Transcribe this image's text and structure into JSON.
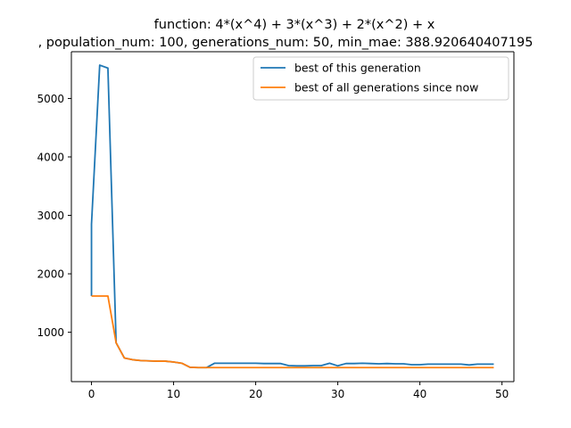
{
  "chart_data": {
    "type": "line",
    "title_line1": "function:  4*(x^4) + 3*(x^3) + 2*(x^2) + x",
    "title_line2": ", population_num: 100, generations_num: 50, min_mae: 388.920640407195",
    "xlabel": "",
    "ylabel": "",
    "xlim": [
      -2.45,
      51.45
    ],
    "ylim": [
      155,
      5800
    ],
    "xticks": [
      0,
      10,
      20,
      30,
      40,
      50
    ],
    "yticks": [
      1000,
      2000,
      3000,
      4000,
      5000
    ],
    "grid": false,
    "legend_position": "upper right",
    "x": [
      0,
      0,
      1,
      2,
      3,
      4,
      5,
      6,
      7,
      8,
      9,
      10,
      11,
      12,
      13,
      14,
      15,
      16,
      17,
      18,
      19,
      20,
      21,
      22,
      23,
      24,
      25,
      26,
      27,
      28,
      29,
      30,
      31,
      32,
      33,
      34,
      35,
      36,
      37,
      38,
      39,
      40,
      41,
      42,
      43,
      44,
      45,
      46,
      47,
      48,
      49
    ],
    "series": [
      {
        "name": "best of this generation",
        "color": "#1f77b4",
        "values": [
          1620,
          2850,
          5570,
          5520,
          820,
          560,
          530,
          515,
          510,
          505,
          505,
          490,
          470,
          400,
          395,
          395,
          470,
          470,
          470,
          470,
          470,
          470,
          465,
          465,
          465,
          430,
          425,
          425,
          430,
          430,
          470,
          425,
          465,
          465,
          470,
          465,
          460,
          465,
          460,
          460,
          445,
          445,
          455,
          455,
          455,
          455,
          455,
          440,
          455,
          455,
          455
        ]
      },
      {
        "name": "best of all generations since now",
        "color": "#ff7f0e",
        "values": [
          1620,
          1620,
          1620,
          1620,
          820,
          560,
          530,
          515,
          510,
          505,
          505,
          490,
          470,
          400,
          395,
          395,
          395,
          395,
          395,
          395,
          395,
          395,
          395,
          395,
          395,
          395,
          395,
          395,
          395,
          395,
          395,
          395,
          395,
          395,
          395,
          395,
          395,
          395,
          395,
          395,
          395,
          395,
          395,
          395,
          395,
          395,
          395,
          395,
          395,
          395,
          395
        ]
      }
    ]
  }
}
